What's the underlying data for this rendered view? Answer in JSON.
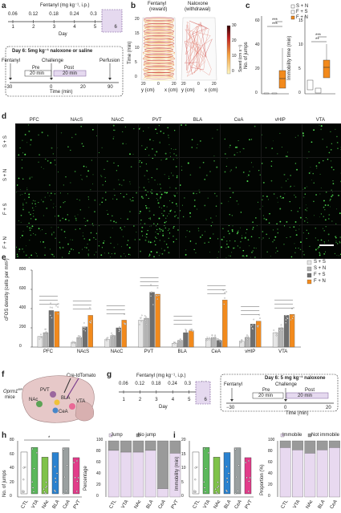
{
  "panel_a": {
    "letter": "a",
    "title": "Fentanyl (mg kg⁻¹, i.p.)",
    "doses": [
      "0.06",
      "0.12",
      "0.18",
      "0.24",
      "0.3",
      "0.3"
    ],
    "days": [
      "1",
      "2",
      "3",
      "4",
      "5",
      "6"
    ],
    "day_label": "Day",
    "box_title": "Day 6: 5mg kg⁻¹ naloxone or saline",
    "events": [
      "Fentanyl",
      "Challenge",
      "Perfusion"
    ],
    "pre": "Pre",
    "post": "Post",
    "pre_dur": "20 min",
    "post_dur": "20 min",
    "ticks": [
      "−30",
      "0",
      "20",
      "90"
    ],
    "xlabel": "Time (min)"
  },
  "panel_b": {
    "letter": "b",
    "titles": [
      "Fentanyl",
      "Naloxone"
    ],
    "subtitles": [
      "(reward)",
      "(withdrawal)"
    ],
    "zlabel": "Time (min)",
    "zticks": [
      "20",
      "15",
      "10",
      "5",
      "0"
    ],
    "ylab": "y (cm)",
    "xlab": "x (cm)",
    "axticks": [
      "20",
      "0",
      "20"
    ],
    "cbar_label": "Speed (cm s⁻¹)",
    "cbar_ticks": [
      "30",
      "20",
      "10",
      "0"
    ]
  },
  "panel_c": {
    "letter": "c",
    "ylabel1": "No. of jumps",
    "ylabel2": "Immobility time (min)",
    "yticks1": [
      "0",
      "20",
      "40",
      "60"
    ],
    "yticks2": [
      "0",
      "5",
      "10",
      "15"
    ],
    "legend": [
      "S + N",
      "F + S",
      "F + N"
    ],
    "stars": [
      "***",
      "***",
      "***",
      "**"
    ]
  },
  "panel_d": {
    "letter": "d",
    "regions": [
      "PFC",
      "NAcS",
      "NAcC",
      "PVT",
      "BLA",
      "CeA",
      "vHIP",
      "VTA"
    ],
    "rows": [
      "S + S",
      "S + N",
      "F + S",
      "F + N"
    ]
  },
  "panel_e": {
    "letter": "e",
    "ylabel": "cFOS density (cells per mm²)",
    "legend": [
      "S + S",
      "S + N",
      "F + S",
      "F + N"
    ],
    "colors": [
      "#e6e6e6",
      "#b4b4b4",
      "#6e6e6e",
      "#f28a1c"
    ],
    "chart_data": {
      "type": "bar",
      "categories": [
        "PFC",
        "NAcS",
        "NAcC",
        "PVT",
        "BLA",
        "CeA",
        "vHIP",
        "VTA"
      ],
      "ylim": [
        0,
        800
      ],
      "yticks": [
        "0",
        "200",
        "400",
        "600",
        "800"
      ],
      "series": [
        {
          "name": "S + S",
          "values": [
            110,
            50,
            80,
            280,
            40,
            90,
            60,
            150
          ]
        },
        {
          "name": "S + N",
          "values": [
            150,
            100,
            120,
            300,
            70,
            100,
            100,
            200
          ]
        },
        {
          "name": "F + S",
          "values": [
            380,
            210,
            200,
            570,
            150,
            70,
            240,
            330
          ]
        },
        {
          "name": "F + N",
          "values": [
            370,
            330,
            280,
            550,
            170,
            490,
            270,
            340
          ]
        }
      ]
    }
  },
  "panel_f": {
    "letter": "f",
    "mouse": "Oprm1",
    "mouse_sup": "fl/fl",
    "mice": "mice",
    "tag": "Cre-tdTomato",
    "regions": [
      "PVT",
      "BLA",
      "NAc",
      "CeA",
      "VTA"
    ]
  },
  "panel_g": {
    "letter": "g",
    "title": "Fentanyl (mg kg⁻¹, i.p.)",
    "doses": [
      "0.06",
      "0.12",
      "0.18",
      "0.24",
      "0.3",
      "0.3"
    ],
    "days": [
      "1",
      "2",
      "3",
      "4",
      "5",
      "6"
    ],
    "day_label": "Day",
    "box_title": "Day 6: 5 mg kg⁻¹ naloxone",
    "events": [
      "Fentanyl",
      "Challenge"
    ],
    "pre": "Pre",
    "post": "Post",
    "pre_dur": "20 min",
    "post_dur": "20 min",
    "ticks": [
      "−30",
      "0",
      "20"
    ],
    "xlabel": "Time (min)"
  },
  "panel_h": {
    "letter": "h",
    "ylabel": "No. of jumps",
    "yticks": [
      "0",
      "20",
      "40",
      "60",
      "80"
    ],
    "groups": [
      "CTL",
      "VTA",
      "NAc",
      "BLA",
      "CeA",
      "PVT"
    ],
    "star": "*",
    "legend": [
      "Jump",
      "No jump"
    ],
    "ylabel2": "Percentage",
    "yticks2": [
      "0",
      "20",
      "40",
      "60",
      "80",
      "100"
    ],
    "chart_data": {
      "type": "bar",
      "categories": [
        "CTL",
        "VTA",
        "NAc",
        "BLA",
        "CeA",
        "PVT"
      ],
      "series": [
        {
          "name": "Jump",
          "values": [
            83,
            80,
            80,
            83,
            15,
            78
          ]
        },
        {
          "name": "No jump",
          "values": [
            17,
            20,
            20,
            17,
            85,
            22
          ]
        }
      ]
    }
  },
  "panel_i": {
    "letter": "i",
    "ylabel": "Immobility (min)",
    "yticks": [
      "0",
      "5",
      "10",
      "15",
      "20"
    ],
    "groups": [
      "CTL",
      "VTA",
      "NAc",
      "BLA",
      "CeA",
      "PVT"
    ],
    "legend": [
      "Immobile",
      "Not immobile"
    ],
    "ylabel2": "Proportion (%)",
    "yticks2": [
      "0",
      "20",
      "40",
      "60",
      "80",
      "100"
    ],
    "chart_data": {
      "type": "bar",
      "categories": [
        "CTL",
        "VTA",
        "NAc",
        "BLA",
        "CeA",
        "PVT"
      ],
      "series": [
        {
          "name": "Immobile",
          "values": [
            88,
            84,
            78,
            84,
            88,
            82
          ]
        },
        {
          "name": "Not immobile",
          "values": [
            12,
            16,
            22,
            16,
            12,
            18
          ]
        }
      ]
    }
  }
}
